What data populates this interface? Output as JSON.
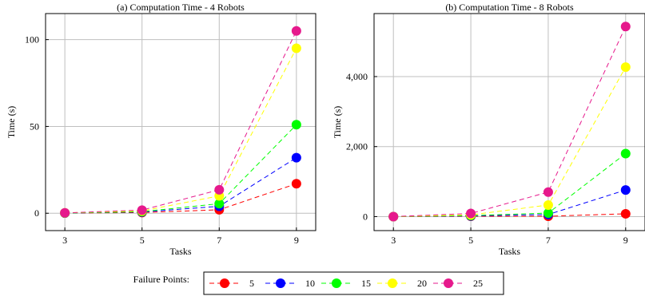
{
  "chart_data": [
    {
      "type": "line",
      "title": "(a) Computation Time - 4 Robots",
      "xlabel": "Tasks",
      "ylabel": "Time (s)",
      "x": [
        3,
        5,
        7,
        9
      ],
      "xticks": [
        "3",
        "5",
        "7",
        "9"
      ],
      "xlim": [
        2.5,
        9.5
      ],
      "ylim": [
        -10,
        115
      ],
      "yticks": [
        0,
        50,
        100
      ],
      "ytick_labels": [
        "0",
        "50",
        "100"
      ],
      "grid": true,
      "series": [
        {
          "name": "5",
          "color": "#ff0000",
          "values": [
            0.1,
            0.4,
            2,
            17
          ]
        },
        {
          "name": "10",
          "color": "#0000ff",
          "values": [
            0.1,
            0.7,
            4,
            32
          ]
        },
        {
          "name": "15",
          "color": "#00ff00",
          "values": [
            0.1,
            0.9,
            5.5,
            51
          ]
        },
        {
          "name": "20",
          "color": "#ffff00",
          "values": [
            0.2,
            1.3,
            10,
            95
          ]
        },
        {
          "name": "25",
          "color": "#e6198c",
          "values": [
            0.2,
            1.8,
            13.5,
            105
          ]
        }
      ]
    },
    {
      "type": "line",
      "title": "(b) Computation Time - 8 Robots",
      "xlabel": "Tasks",
      "ylabel": "Time (s)",
      "x": [
        3,
        5,
        7,
        9
      ],
      "xticks": [
        "3",
        "5",
        "7",
        "9"
      ],
      "xlim": [
        2.5,
        9.5
      ],
      "ylim": [
        -400,
        5800
      ],
      "yticks": [
        0,
        2000,
        4000
      ],
      "ytick_labels": [
        "0",
        "2,000",
        "4,000"
      ],
      "grid": true,
      "series": [
        {
          "name": "5",
          "color": "#ff0000",
          "values": [
            0,
            10,
            10,
            80
          ]
        },
        {
          "name": "10",
          "color": "#0000ff",
          "values": [
            0,
            20,
            60,
            760
          ]
        },
        {
          "name": "15",
          "color": "#00ff00",
          "values": [
            0,
            30,
            100,
            1800
          ]
        },
        {
          "name": "20",
          "color": "#ffff00",
          "values": [
            0,
            50,
            330,
            4270
          ]
        },
        {
          "name": "25",
          "color": "#e6198c",
          "values": [
            0,
            90,
            700,
            5430
          ]
        }
      ]
    }
  ],
  "legend": {
    "title": "Failure Points:",
    "entries": [
      "5",
      "10",
      "15",
      "20",
      "25"
    ]
  }
}
